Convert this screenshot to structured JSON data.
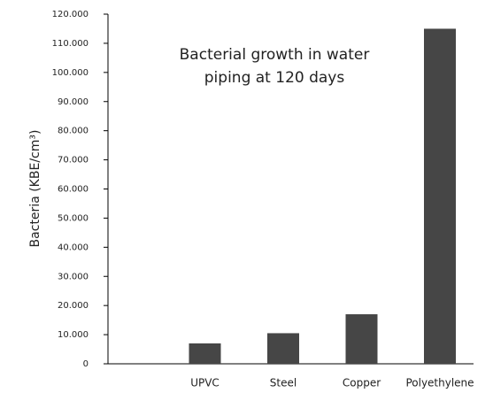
{
  "chart_data": {
    "type": "bar",
    "title": "Bacterial growth in water piping at 120 days",
    "ylabel": "Bacteria (KBE/cm³)",
    "categories": [
      null,
      "UPVC",
      "Steel",
      "Copper",
      "Polyethylene"
    ],
    "values": [
      null,
      7000,
      10500,
      17000,
      115000
    ],
    "color": "#464646",
    "ylim": [
      0,
      120000
    ],
    "yticks": [
      0,
      {
        "value": 10000,
        "label": "10.000"
      },
      {
        "value": 20000,
        "label": "20.000"
      },
      {
        "value": 30000,
        "label": "30.000"
      },
      {
        "value": 40000,
        "label": "40.000"
      },
      {
        "value": 50000,
        "label": "50.000"
      },
      {
        "value": 60000,
        "label": "60.000"
      },
      {
        "value": 70000,
        "label": "70.000"
      },
      {
        "value": 80000,
        "label": "80.000"
      },
      {
        "value": 90000,
        "label": "90.000"
      },
      {
        "value": 100000,
        "label": "100.000"
      },
      {
        "value": 110000,
        "label": "110.000"
      },
      {
        "value": 120000,
        "label": "120.000"
      }
    ],
    "grid": false
  }
}
